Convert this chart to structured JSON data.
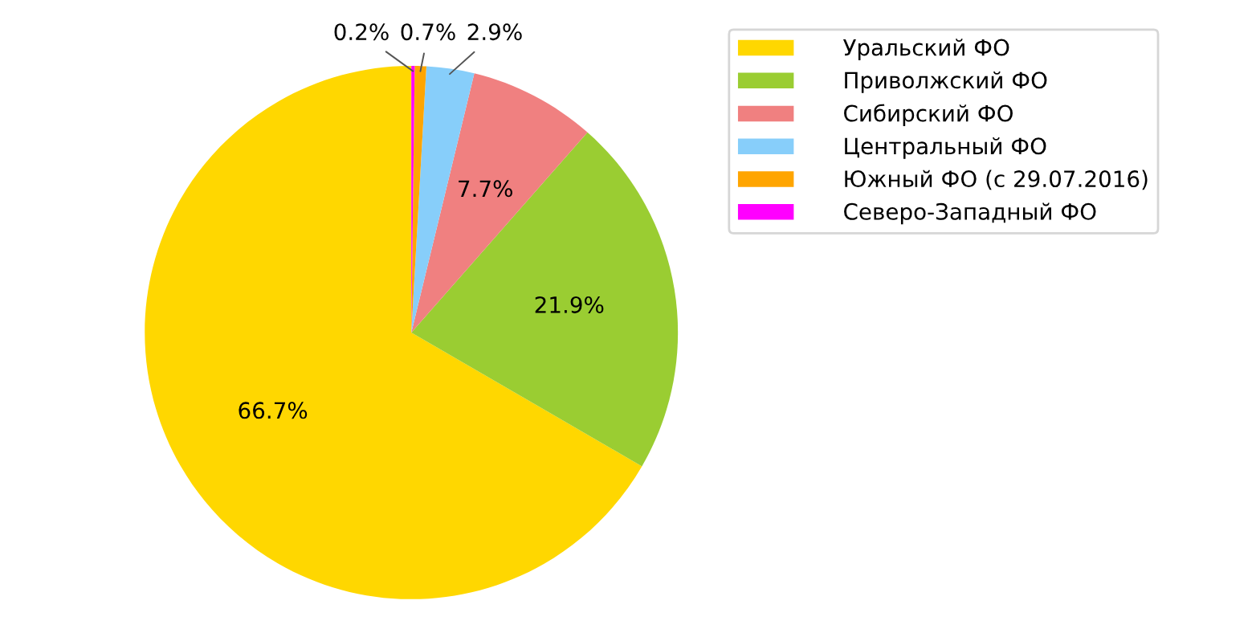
{
  "chart_data": {
    "type": "pie",
    "categories": [
      "Уральский ФО",
      "Приволжский ФО",
      "Сибирский ФО",
      "Центральный ФО",
      "Южный ФО (с 29.07.2016)",
      "Северо-Западный ФО"
    ],
    "values": [
      66.7,
      21.9,
      7.7,
      2.9,
      0.7,
      0.2
    ],
    "value_labels": [
      "66.7%",
      "21.9%",
      "7.7%",
      "2.9%",
      "0.7%",
      "0.2%"
    ],
    "colors": [
      "#ffd700",
      "#9acd32",
      "#f08080",
      "#87cefa",
      "#ffa500",
      "#ff00ff"
    ],
    "legend": "top right"
  }
}
